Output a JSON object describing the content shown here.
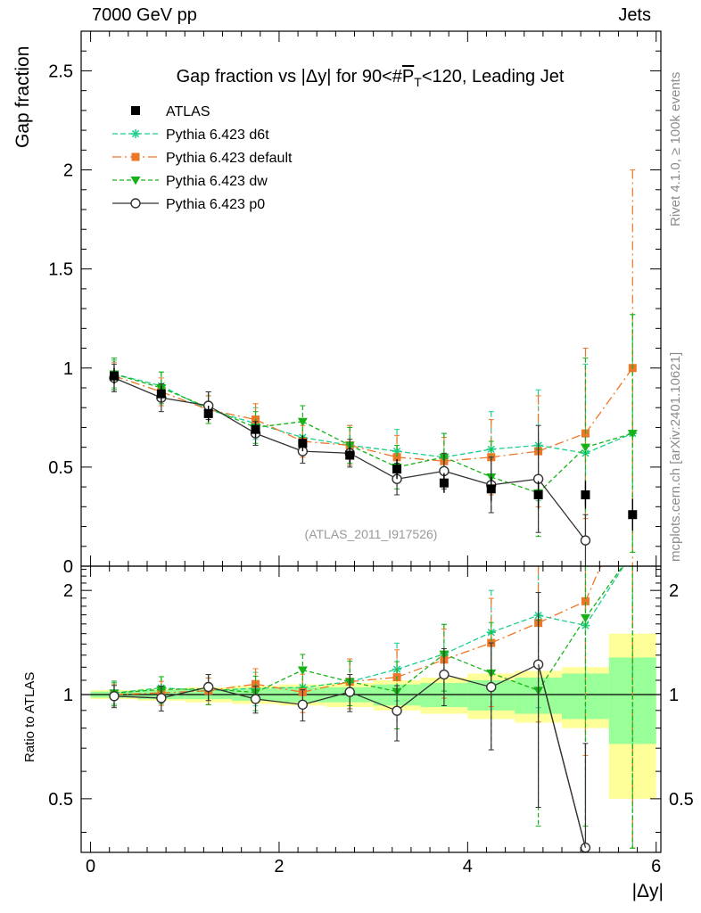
{
  "header": {
    "energy_label": "7000 GeV pp",
    "process_label": "Jets"
  },
  "side": {
    "rivet_label": "Rivet 4.1.0, ≥ 100k events",
    "mcplots_label": "mcplots.cern.ch [arXiv:2401.10621]"
  },
  "chart_data": {
    "type": "scatter",
    "title_parts": {
      "before": "Gap fraction vs |Δy| for 90<#",
      "bar": "P",
      "sub": "T",
      "after": "<120, Leading Jet"
    },
    "xlabel": "|Δy|",
    "ylabel": "Gap fraction",
    "ratio_ylabel": "Ratio to ATLAS",
    "analysis_tag": "(ATLAS_2011_I917526)",
    "xlim": [
      -0.1,
      6.05
    ],
    "ylim": [
      0,
      2.7
    ],
    "ratio_ylim": [
      0.35,
      2.35
    ],
    "xticks": [
      0,
      2,
      4,
      6
    ],
    "yticks": [
      0,
      0.5,
      1,
      1.5,
      2,
      2.5
    ],
    "ratio_yticks": [
      0.5,
      1,
      2
    ],
    "x": [
      0.25,
      0.75,
      1.25,
      1.75,
      2.25,
      2.75,
      3.25,
      3.75,
      4.25,
      4.75,
      5.25,
      5.75
    ],
    "xbins": [
      [
        0,
        0.5
      ],
      [
        0.5,
        1.0
      ],
      [
        1.0,
        1.5
      ],
      [
        1.5,
        2.0
      ],
      [
        2.0,
        2.5
      ],
      [
        2.5,
        3.0
      ],
      [
        3.0,
        3.5
      ],
      [
        3.5,
        4.0
      ],
      [
        4.0,
        4.5
      ],
      [
        4.5,
        5.0
      ],
      [
        5.0,
        5.5
      ],
      [
        5.5,
        6.0
      ]
    ],
    "data": {
      "name": "ATLAS",
      "values": [
        0.96,
        0.87,
        0.77,
        0.69,
        0.62,
        0.56,
        0.49,
        0.42,
        0.39,
        0.36,
        0.36,
        0.26
      ],
      "errors": [
        0.04,
        0.04,
        0.04,
        0.04,
        0.04,
        0.04,
        0.05,
        0.05,
        0.06,
        0.07,
        0.07,
        0.08
      ],
      "stat_band_rel": [
        0.02,
        0.03,
        0.03,
        0.04,
        0.05,
        0.05,
        0.07,
        0.08,
        0.1,
        0.12,
        0.15,
        0.28
      ],
      "total_band_rel": [
        0.03,
        0.04,
        0.05,
        0.06,
        0.07,
        0.08,
        0.1,
        0.12,
        0.15,
        0.17,
        0.2,
        0.5
      ]
    },
    "series": [
      {
        "name": "Pythia 6.423 d6t",
        "color": "#1ccf8a",
        "dash": "6,3",
        "marker": "star",
        "values": [
          0.97,
          0.91,
          0.79,
          0.72,
          0.65,
          0.61,
          0.58,
          0.55,
          0.59,
          0.61,
          0.57,
          0.67
        ],
        "errors": [
          0.07,
          0.07,
          0.07,
          0.08,
          0.08,
          0.1,
          0.11,
          0.12,
          0.19,
          0.28,
          0.45,
          0.6
        ]
      },
      {
        "name": "Pythia 6.423 default",
        "color": "#ee7627",
        "dash": "10,4,2,4",
        "marker": "square",
        "values": [
          0.96,
          0.88,
          0.79,
          0.74,
          0.63,
          0.61,
          0.55,
          0.53,
          0.55,
          0.58,
          0.67,
          1.0
        ],
        "errors": [
          0.07,
          0.07,
          0.07,
          0.08,
          0.08,
          0.1,
          0.11,
          0.12,
          0.19,
          0.28,
          0.43,
          1.0
        ]
      },
      {
        "name": "Pythia 6.423 dw",
        "color": "#17b217",
        "dash": "5,3",
        "marker": "triangle-down",
        "values": [
          0.97,
          0.9,
          0.8,
          0.7,
          0.73,
          0.61,
          0.5,
          0.55,
          0.45,
          0.37,
          0.6,
          0.67
        ],
        "errors": [
          0.08,
          0.08,
          0.08,
          0.08,
          0.08,
          0.09,
          0.11,
          0.12,
          0.18,
          0.22,
          0.45,
          0.6
        ]
      },
      {
        "name": "Pythia 6.423 p0",
        "color": "#333333",
        "dash": "",
        "marker": "circle-open",
        "values": [
          0.95,
          0.85,
          0.81,
          0.67,
          0.58,
          0.57,
          0.44,
          0.48,
          0.41,
          0.44,
          0.13,
          null
        ],
        "errors": [
          0.07,
          0.07,
          0.07,
          0.06,
          0.06,
          0.07,
          0.08,
          0.09,
          0.14,
          0.27,
          0.13,
          null
        ]
      }
    ]
  }
}
